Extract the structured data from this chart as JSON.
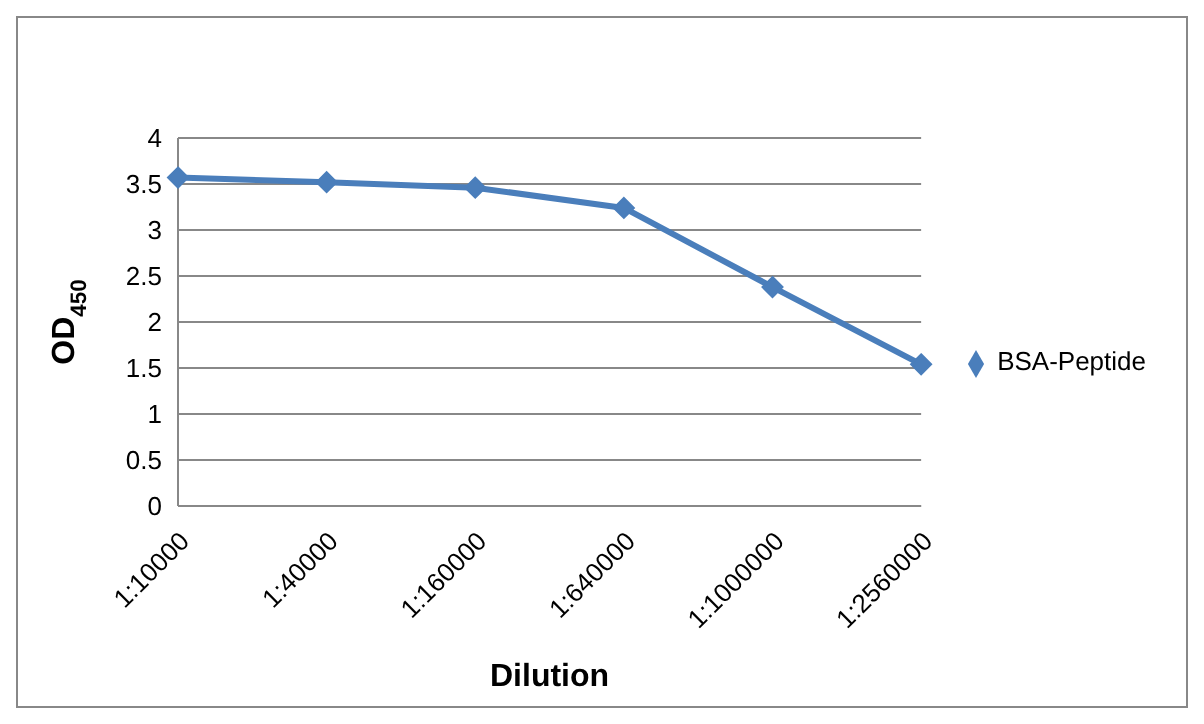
{
  "chart_data": {
    "type": "line",
    "xlabel": "Dilution",
    "ylabel": "OD$_{450}$",
    "categories": [
      "1:10000",
      "1:40000",
      "1:160000",
      "1:640000",
      "1:1000000",
      "1:2560000"
    ],
    "series": [
      {
        "name": "BSA-Peptide",
        "color": "#4a7ebb",
        "values": [
          3.57,
          3.52,
          3.46,
          3.24,
          2.38,
          1.54
        ]
      }
    ],
    "ylim": [
      0,
      4
    ],
    "yticks": [
      0,
      0.5,
      1,
      1.5,
      2,
      2.5,
      3,
      3.5,
      4
    ],
    "grid": "y",
    "legend": "right",
    "marker": "diamond"
  }
}
